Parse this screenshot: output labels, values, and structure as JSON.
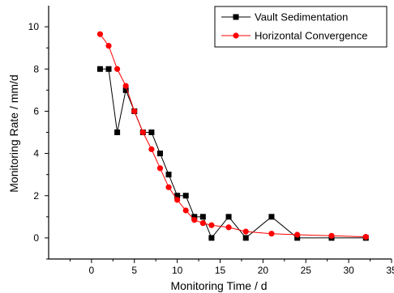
{
  "chart_data": {
    "type": "line",
    "title": "",
    "xlabel": "Monitoring Time / d",
    "ylabel": "Monitoring Rate / mm/d",
    "xlim": [
      -5,
      35
    ],
    "ylim": [
      -1,
      11
    ],
    "x_ticks": [
      0,
      5,
      10,
      15,
      20,
      25,
      30,
      35
    ],
    "y_ticks": [
      0,
      2,
      4,
      6,
      8,
      10
    ],
    "grid": false,
    "legend_position": "top-right",
    "series": [
      {
        "name": "Vault Sedimentation",
        "marker": "square",
        "color": "#000000",
        "line_color": "#000000",
        "x": [
          1,
          2,
          3,
          4,
          5,
          6,
          7,
          8,
          9,
          10,
          11,
          12,
          13,
          14,
          16,
          18,
          21,
          24,
          28,
          32
        ],
        "y": [
          8,
          8,
          5,
          7,
          6,
          5,
          5,
          4,
          3,
          2,
          2,
          1,
          1,
          0,
          1,
          0,
          1,
          0,
          0,
          0
        ]
      },
      {
        "name": "Horizontal Convergence",
        "marker": "circle",
        "color": "#ff0000",
        "line_color": "#ff0000",
        "x": [
          1,
          2,
          3,
          4,
          5,
          6,
          7,
          8,
          9,
          10,
          11,
          12,
          13,
          14,
          16,
          18,
          21,
          24,
          28,
          32
        ],
        "y": [
          9.65,
          9.1,
          8.0,
          7.2,
          6.0,
          5.0,
          4.2,
          3.3,
          2.4,
          1.8,
          1.3,
          0.85,
          0.7,
          0.6,
          0.5,
          0.3,
          0.2,
          0.15,
          0.1,
          0.05
        ]
      }
    ]
  }
}
